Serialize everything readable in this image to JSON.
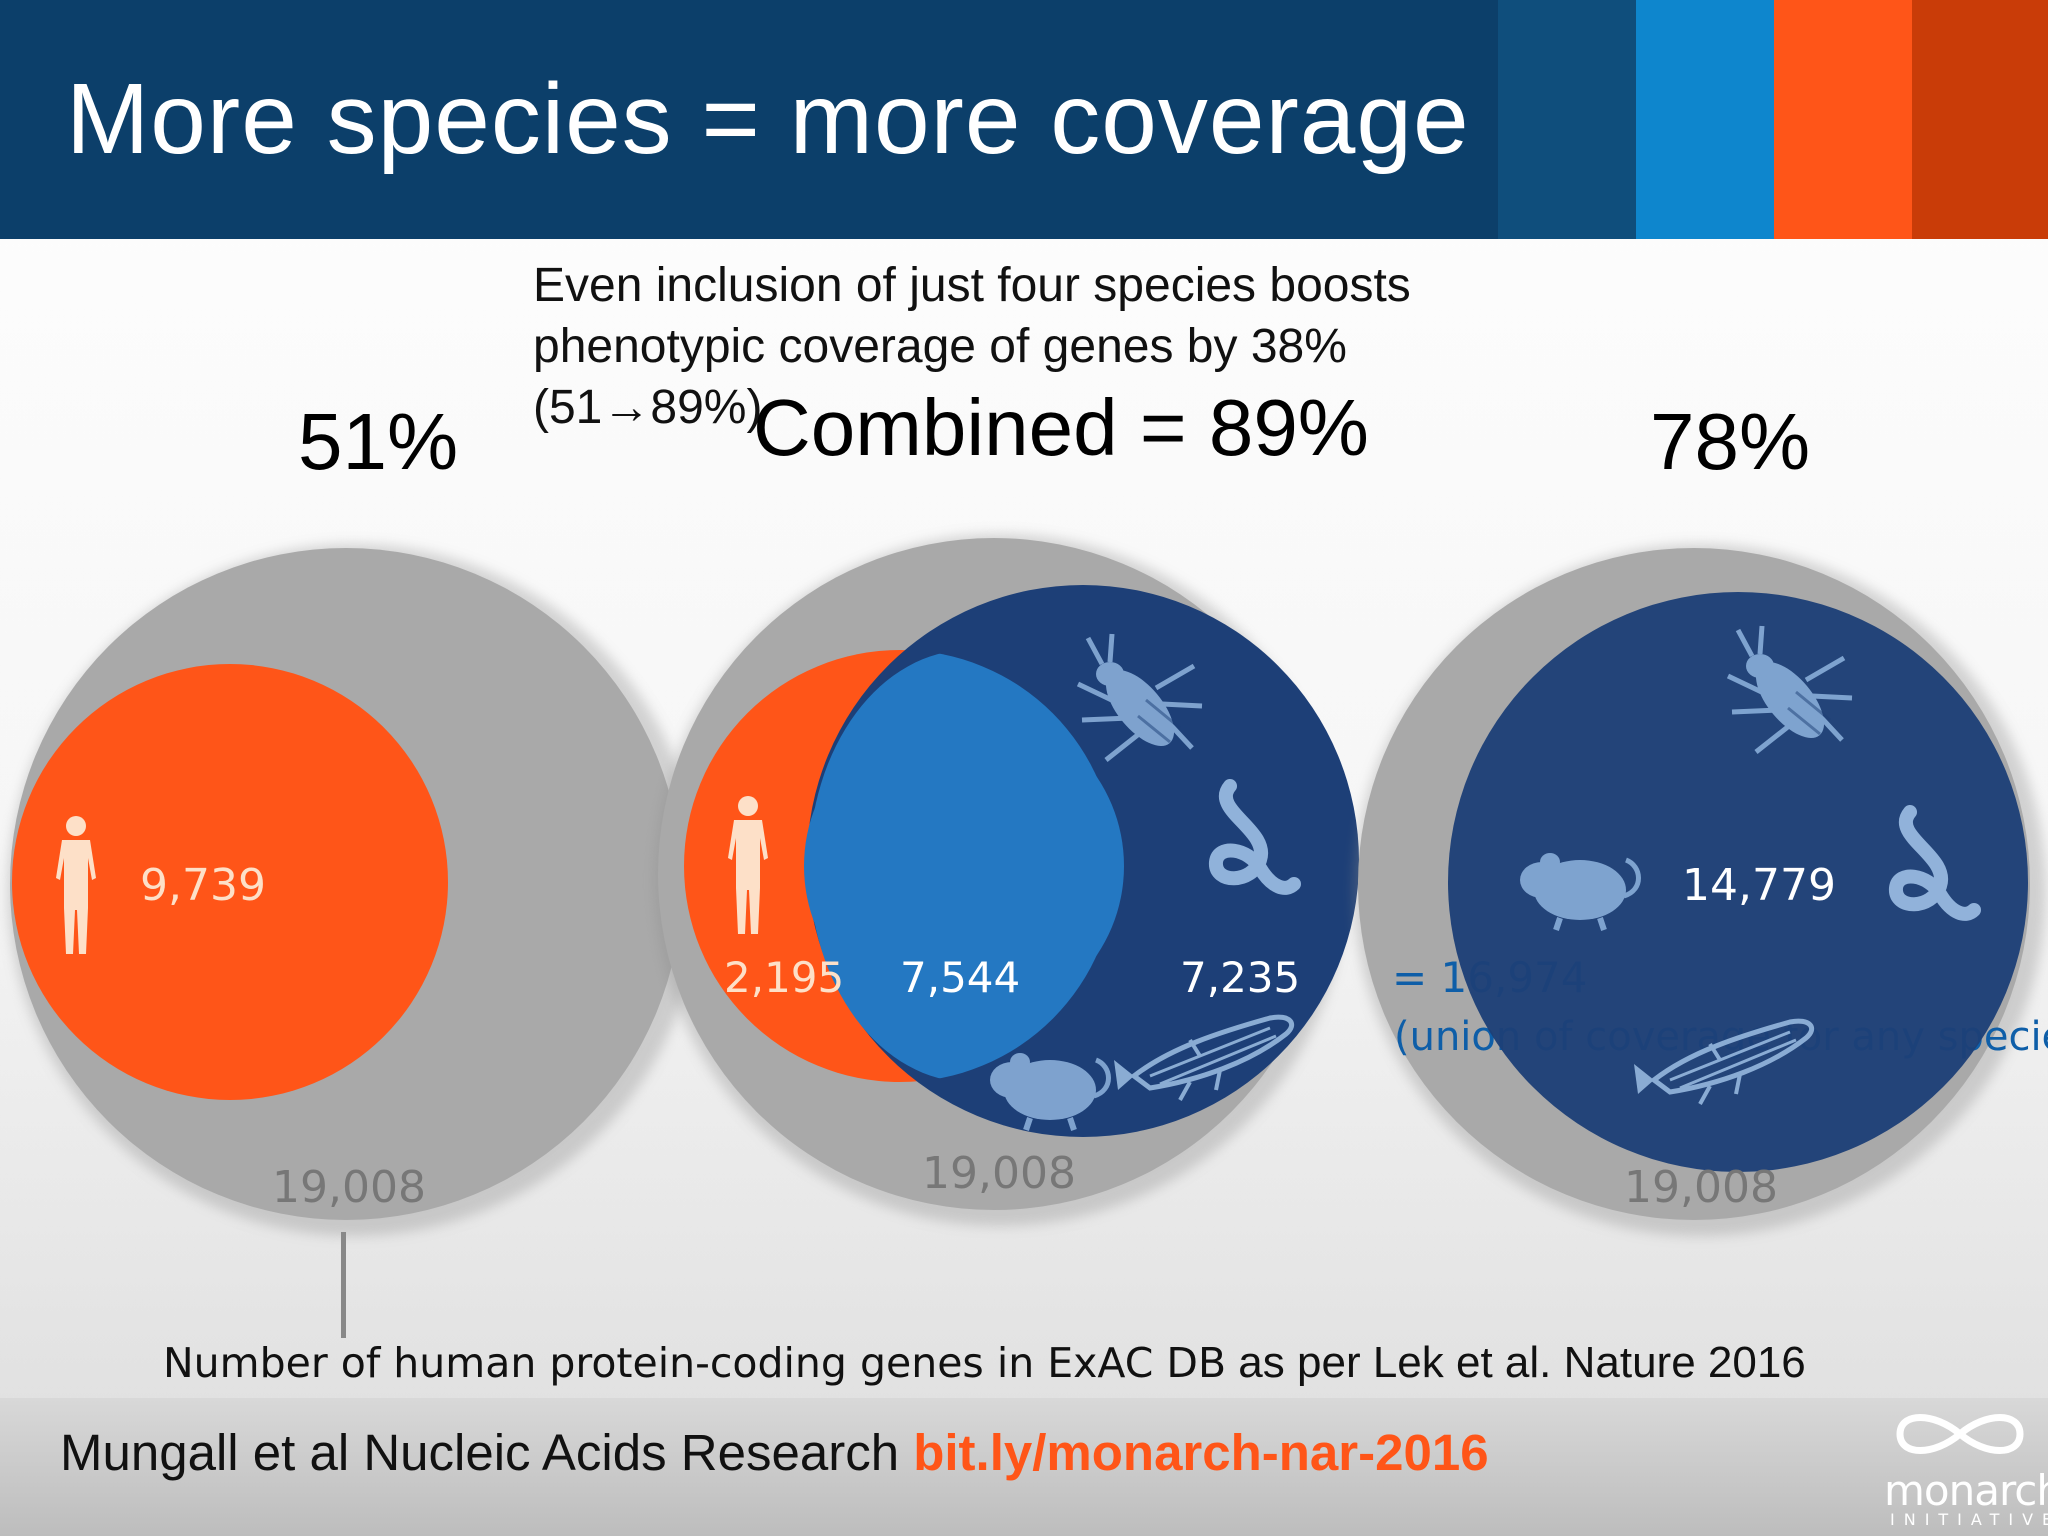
{
  "title": "More species = more coverage",
  "callout": {
    "line1": "Even inclusion of just four species boosts",
    "line2": "phenotypic coverage of genes by 38%",
    "line3": "(51→89%)"
  },
  "left": {
    "percent": "51%",
    "human_count": "9,739",
    "total": "19,008"
  },
  "middle": {
    "label": "Combined = 89%",
    "human_only": "2,195",
    "overlap": "7,544",
    "model_only": "7,235",
    "total": "19,008"
  },
  "right": {
    "percent": "78%",
    "model_count": "14,779",
    "total": "19,008",
    "union_value": "= 16,974",
    "union_note": "(union of coverage for any species)"
  },
  "note": {
    "part1": "Number of human protein-coding genes in ExAC DB",
    "part2": " as per Lek et al. Nature 2016"
  },
  "footer": {
    "citation": "Mungall et al Nucleic Acids Research ",
    "link": "bit.ly/monarch-nar-2016"
  },
  "logo": {
    "name": "monarch",
    "sub": "INITIATIVE"
  },
  "icons": [
    "human-icon",
    "fly-icon",
    "worm-icon",
    "mouse-icon",
    "zebrafish-icon"
  ],
  "colors": {
    "header": "#0c3f6a",
    "human": "#ff5518",
    "model": "#1d3f77",
    "overlap": "#2478c2",
    "total": "#a9a9a9"
  }
}
